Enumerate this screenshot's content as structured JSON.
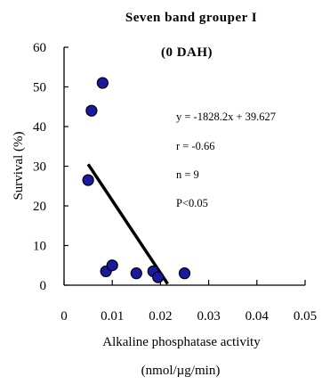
{
  "chart_data": {
    "type": "scatter",
    "title": "Seven band grouper I",
    "subtitle": "(0 DAH)",
    "xlabel": "Alkaline phosphatase activity",
    "xlabel_unit": "(nmol/µg/min)",
    "ylabel": "Survival (%)",
    "xlim": [
      0,
      0.05
    ],
    "ylim": [
      0,
      60
    ],
    "x_ticks": [
      "0",
      "0.01",
      "0.02",
      "0.03",
      "0.04",
      "0.05"
    ],
    "y_ticks": [
      "0",
      "10",
      "20",
      "30",
      "40",
      "50",
      "60"
    ],
    "points": [
      {
        "x": 0.005,
        "y": 26.5
      },
      {
        "x": 0.0057,
        "y": 44.0
      },
      {
        "x": 0.008,
        "y": 51.0
      },
      {
        "x": 0.0087,
        "y": 3.5
      },
      {
        "x": 0.01,
        "y": 5.0
      },
      {
        "x": 0.015,
        "y": 3.0
      },
      {
        "x": 0.0185,
        "y": 3.5
      },
      {
        "x": 0.0195,
        "y": 2.0
      },
      {
        "x": 0.025,
        "y": 3.0
      }
    ],
    "regression": {
      "slope": -1828.2,
      "intercept": 39.627,
      "x_start": 0.005,
      "x_end": 0.0215
    },
    "annotations": {
      "equation": "y = -1828.2x + 39.627",
      "r": "r = -0.66",
      "n": "n = 9",
      "p": "P<0.05"
    },
    "marker_fill": "#1a1aa0",
    "marker_stroke": "#000000",
    "line_color": "#000000"
  }
}
